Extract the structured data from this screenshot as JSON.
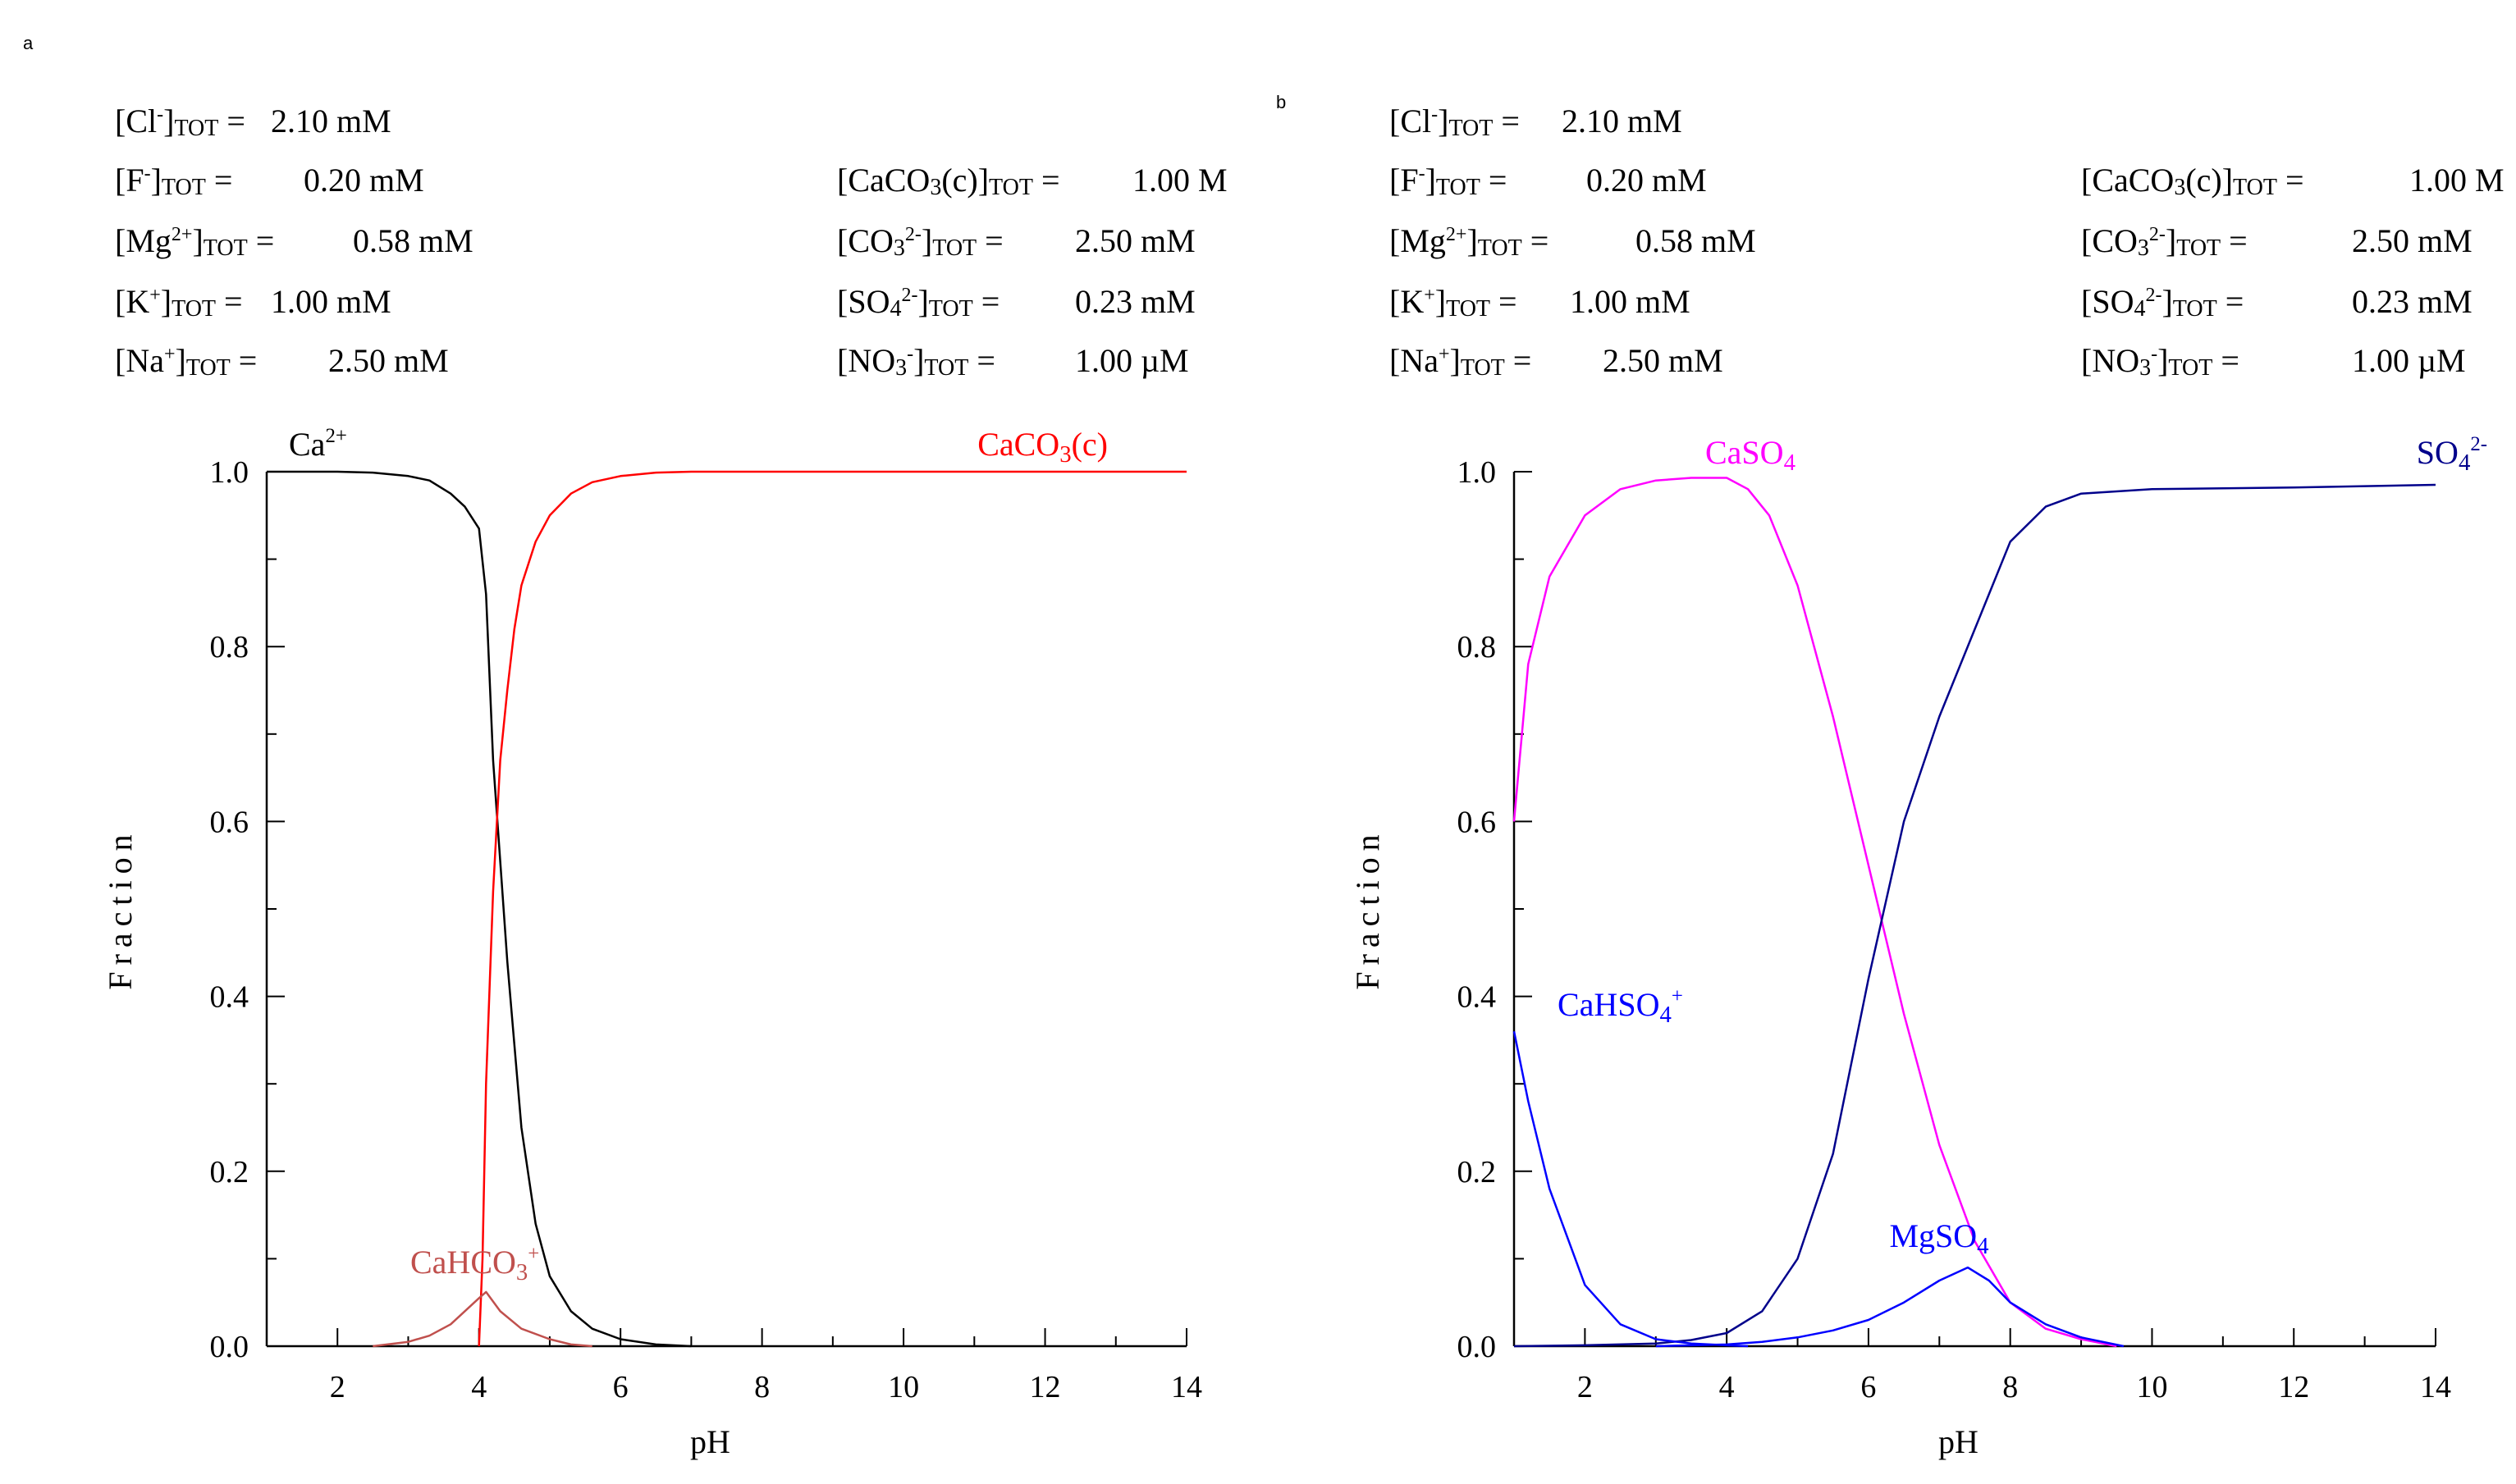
{
  "panels": [
    {
      "label": "a",
      "concentrations_left": [
        {
          "species": "Cl",
          "charge": "-",
          "value": "2.10 mM"
        },
        {
          "species": "F",
          "charge": "-",
          "value": "0.20 mM"
        },
        {
          "species": "Mg",
          "charge": "2+",
          "value": "0.58 mM"
        },
        {
          "species": "K",
          "charge": "+",
          "value": "1.00 mM"
        },
        {
          "species": "Na",
          "charge": "+",
          "value": "2.50 mM"
        }
      ],
      "concentrations_right": [
        {
          "species": "CaCO3(c)",
          "value": "1.00 M"
        },
        {
          "species": "CO3",
          "charge": "2-",
          "value": "2.50 mM"
        },
        {
          "species": "SO4",
          "charge": "2-",
          "value": "0.23 mM"
        },
        {
          "species": "NO3",
          "charge": "-",
          "value": "1.00 µM"
        }
      ]
    },
    {
      "label": "b",
      "concentrations_left": [
        {
          "species": "Cl",
          "charge": "-",
          "value": "2.10 mM"
        },
        {
          "species": "F",
          "charge": "-",
          "value": "0.20 mM"
        },
        {
          "species": "Mg",
          "charge": "2+",
          "value": "0.58 mM"
        },
        {
          "species": "K",
          "charge": "+",
          "value": "1.00 mM"
        },
        {
          "species": "Na",
          "charge": "+",
          "value": "2.50 mM"
        }
      ],
      "concentrations_right": [
        {
          "species": "CaCO3(c)",
          "value": "1.00 M"
        },
        {
          "species": "CO3",
          "charge": "2-",
          "value": "2.50 mM"
        },
        {
          "species": "SO4",
          "charge": "2-",
          "value": "0.23 mM"
        },
        {
          "species": "NO3",
          "charge": "-",
          "value": "1.00 µM"
        }
      ]
    }
  ],
  "tot_subscript": "TOT",
  "chart_data": [
    {
      "type": "line",
      "panel": "a",
      "xlabel": "pH",
      "ylabel": "Fraction",
      "xlim": [
        1,
        14
      ],
      "ylim": [
        0,
        1
      ],
      "xticks": [
        "2",
        "4",
        "6",
        "8",
        "10",
        "12",
        "14"
      ],
      "yticks": [
        "0.0",
        "0.2",
        "0.4",
        "0.6",
        "0.8",
        "1.0"
      ],
      "series": [
        {
          "name": "Ca2+",
          "label": "Ca",
          "charge": "2+",
          "color": "#000000",
          "x": [
            1,
            2,
            2.5,
            3,
            3.3,
            3.6,
            3.8,
            4.0,
            4.1,
            4.2,
            4.4,
            4.6,
            4.8,
            5.0,
            5.3,
            5.6,
            6.0,
            6.5,
            7.0
          ],
          "y": [
            1.0,
            1.0,
            0.999,
            0.995,
            0.99,
            0.975,
            0.96,
            0.935,
            0.86,
            0.67,
            0.44,
            0.25,
            0.14,
            0.08,
            0.04,
            0.02,
            0.008,
            0.002,
            0.0
          ]
        },
        {
          "name": "CaCO3(c)",
          "label": "CaCO3(c)",
          "color": "#ff0000",
          "x": [
            4.0,
            4.05,
            4.1,
            4.2,
            4.3,
            4.4,
            4.5,
            4.6,
            4.8,
            5.0,
            5.3,
            5.6,
            6.0,
            6.5,
            7.0,
            8,
            10,
            12,
            14
          ],
          "y": [
            0.0,
            0.1,
            0.3,
            0.52,
            0.67,
            0.75,
            0.82,
            0.87,
            0.92,
            0.95,
            0.975,
            0.988,
            0.995,
            0.999,
            1.0,
            1.0,
            1.0,
            1.0,
            1.0
          ]
        },
        {
          "name": "CaHCO3+",
          "label": "CaHCO3",
          "charge": "+",
          "color": "#c0504d",
          "x": [
            2.5,
            3.0,
            3.3,
            3.6,
            3.8,
            4.0,
            4.1,
            4.3,
            4.6,
            5.0,
            5.3,
            5.6
          ],
          "y": [
            0.0,
            0.005,
            0.012,
            0.025,
            0.04,
            0.055,
            0.062,
            0.04,
            0.02,
            0.008,
            0.002,
            0.0
          ]
        }
      ]
    },
    {
      "type": "line",
      "panel": "b",
      "xlabel": "pH",
      "ylabel": "Fraction",
      "xlim": [
        1,
        14
      ],
      "ylim": [
        0,
        1
      ],
      "xticks": [
        "2",
        "4",
        "6",
        "8",
        "10",
        "12",
        "14"
      ],
      "yticks": [
        "0.0",
        "0.2",
        "0.4",
        "0.6",
        "0.8",
        "1.0"
      ],
      "series": [
        {
          "name": "CaSO4",
          "label": "CaSO4",
          "color": "#ff00ff",
          "x": [
            1.0,
            1.2,
            1.5,
            2.0,
            2.5,
            3.0,
            3.5,
            4.0,
            4.3,
            4.6,
            5.0,
            5.5,
            6.0,
            6.5,
            7.0,
            7.5,
            8.0,
            8.5,
            9.0,
            9.5
          ],
          "y": [
            0.6,
            0.78,
            0.88,
            0.95,
            0.98,
            0.99,
            0.993,
            0.993,
            0.98,
            0.95,
            0.87,
            0.72,
            0.55,
            0.38,
            0.23,
            0.12,
            0.05,
            0.02,
            0.008,
            0.0
          ]
        },
        {
          "name": "SO4 2-",
          "label": "SO4",
          "charge": "2-",
          "color": "#00008b",
          "x": [
            1,
            2,
            3,
            3.5,
            4.0,
            4.5,
            5.0,
            5.5,
            6.0,
            6.5,
            7.0,
            7.5,
            8.0,
            8.5,
            9.0,
            10,
            12,
            14
          ],
          "y": [
            0.0,
            0.001,
            0.003,
            0.007,
            0.015,
            0.04,
            0.1,
            0.22,
            0.42,
            0.6,
            0.72,
            0.82,
            0.92,
            0.96,
            0.975,
            0.98,
            0.982,
            0.985
          ]
        },
        {
          "name": "CaHSO4+",
          "label": "CaHSO4",
          "charge": "+",
          "color": "#0000ff",
          "x": [
            1.0,
            1.2,
            1.5,
            2.0,
            2.5,
            3.0,
            3.5,
            4.0,
            4.3
          ],
          "y": [
            0.36,
            0.28,
            0.18,
            0.07,
            0.025,
            0.008,
            0.003,
            0.001,
            0.0
          ]
        },
        {
          "name": "MgSO4",
          "label": "MgSO4",
          "color": "#0000ff",
          "x": [
            3.0,
            4.0,
            4.5,
            5.0,
            5.5,
            6.0,
            6.5,
            7.0,
            7.4,
            7.7,
            8.0,
            8.5,
            9.0,
            9.6
          ],
          "y": [
            0.0,
            0.002,
            0.005,
            0.01,
            0.018,
            0.03,
            0.05,
            0.075,
            0.09,
            0.075,
            0.05,
            0.025,
            0.01,
            0.0
          ]
        }
      ]
    }
  ]
}
